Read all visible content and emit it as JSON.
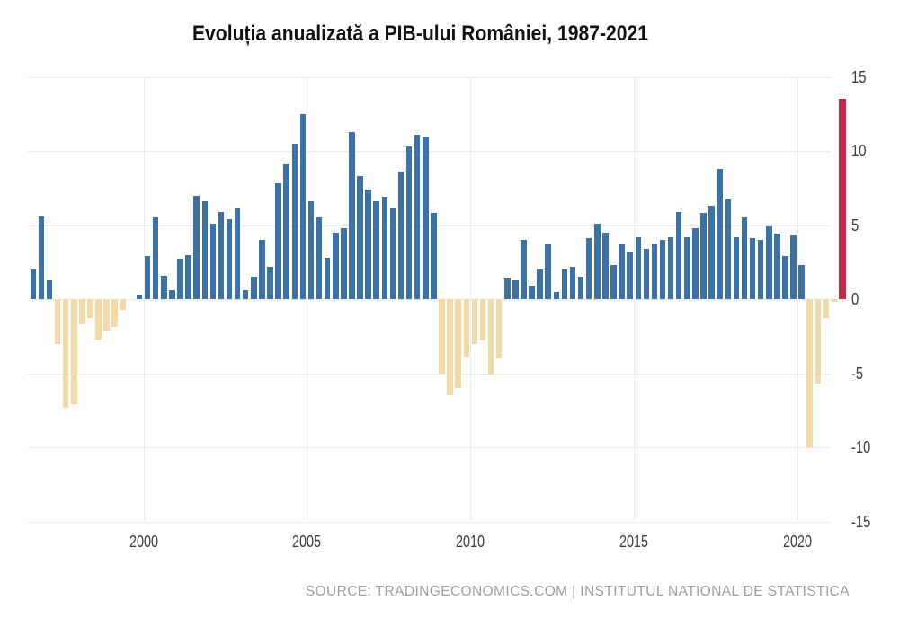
{
  "chart_data": {
    "type": "bar",
    "title": "Evoluția anualizată a PIB-ului României, 1987-2021",
    "unit": "%",
    "ylim": [
      -15,
      15
    ],
    "yticks": [
      15,
      10,
      5,
      0,
      -5,
      -10,
      -15
    ],
    "xticks": [
      "2000",
      "2005",
      "2010",
      "2015",
      "2020"
    ],
    "grid": true,
    "legend_position": "none",
    "bar_color_positive": "#3b73a8",
    "bar_color_negative": "#f3d9a4",
    "bar_color_latest": "#c1294a",
    "latest_bar_label": "2021 Q2",
    "x": [
      "1996 Q3",
      "1996 Q4",
      "1997 Q1",
      "1997 Q2",
      "1997 Q3",
      "1997 Q4",
      "1998 Q1",
      "1998 Q2",
      "1998 Q3",
      "1998 Q4",
      "1999 Q1",
      "1999 Q2",
      "1999 Q3",
      "1999 Q4",
      "2000 Q1",
      "2000 Q2",
      "2000 Q3",
      "2000 Q4",
      "2001 Q1",
      "2001 Q2",
      "2001 Q3",
      "2001 Q4",
      "2002 Q1",
      "2002 Q2",
      "2002 Q3",
      "2002 Q4",
      "2003 Q1",
      "2003 Q2",
      "2003 Q3",
      "2003 Q4",
      "2004 Q1",
      "2004 Q2",
      "2004 Q3",
      "2004 Q4",
      "2005 Q1",
      "2005 Q2",
      "2005 Q3",
      "2005 Q4",
      "2006 Q1",
      "2006 Q2",
      "2006 Q3",
      "2006 Q4",
      "2007 Q1",
      "2007 Q2",
      "2007 Q3",
      "2007 Q4",
      "2008 Q1",
      "2008 Q2",
      "2008 Q3",
      "2008 Q4",
      "2009 Q1",
      "2009 Q2",
      "2009 Q3",
      "2009 Q4",
      "2010 Q1",
      "2010 Q2",
      "2010 Q3",
      "2010 Q4",
      "2011 Q1",
      "2011 Q2",
      "2011 Q3",
      "2011 Q4",
      "2012 Q1",
      "2012 Q2",
      "2012 Q3",
      "2012 Q4",
      "2013 Q1",
      "2013 Q2",
      "2013 Q3",
      "2013 Q4",
      "2014 Q1",
      "2014 Q2",
      "2014 Q3",
      "2014 Q4",
      "2015 Q1",
      "2015 Q2",
      "2015 Q3",
      "2015 Q4",
      "2016 Q1",
      "2016 Q2",
      "2016 Q3",
      "2016 Q4",
      "2017 Q1",
      "2017 Q2",
      "2017 Q3",
      "2017 Q4",
      "2018 Q1",
      "2018 Q2",
      "2018 Q3",
      "2018 Q4",
      "2019 Q1",
      "2019 Q2",
      "2019 Q3",
      "2019 Q4",
      "2020 Q1",
      "2020 Q2",
      "2020 Q3",
      "2020 Q4",
      "2021 Q1",
      "2021 Q2"
    ],
    "values": [
      2.0,
      5.6,
      1.3,
      -3.0,
      -7.3,
      -7.1,
      -1.7,
      -1.3,
      -2.7,
      -2.1,
      -1.9,
      -0.7,
      0.0,
      0.3,
      2.9,
      5.5,
      1.6,
      0.6,
      2.7,
      3.0,
      7.0,
      6.6,
      5.1,
      5.9,
      5.4,
      6.1,
      0.6,
      1.5,
      4.0,
      2.2,
      7.8,
      9.1,
      10.5,
      12.5,
      6.6,
      5.5,
      2.8,
      4.5,
      4.8,
      11.3,
      8.3,
      7.4,
      6.6,
      6.9,
      6.1,
      8.6,
      10.3,
      11.1,
      11.0,
      5.8,
      -5.0,
      -6.5,
      -6.0,
      -3.9,
      -3.0,
      -2.8,
      -5.1,
      -4.0,
      1.4,
      1.3,
      4.0,
      0.9,
      2.0,
      3.7,
      0.5,
      2.0,
      2.2,
      1.5,
      4.1,
      5.1,
      4.5,
      2.3,
      3.7,
      3.2,
      4.2,
      3.4,
      3.7,
      4.0,
      4.2,
      5.9,
      4.2,
      4.8,
      5.8,
      6.3,
      8.8,
      6.7,
      4.2,
      5.5,
      4.1,
      4.0,
      4.9,
      4.4,
      2.9,
      4.3,
      2.3,
      -10.0,
      -5.7,
      -1.3,
      -0.2,
      13.5
    ]
  },
  "source_caption": "SOURCE: TRADINGECONOMICS.COM | INSTITUTUL NATIONAL DE STATISTICA",
  "colors": {
    "background": "#ffffff",
    "gridline": "#ececec",
    "axis_text": "#3c3c3c",
    "title_text": "#111111",
    "source_text": "#9e9e9e"
  }
}
